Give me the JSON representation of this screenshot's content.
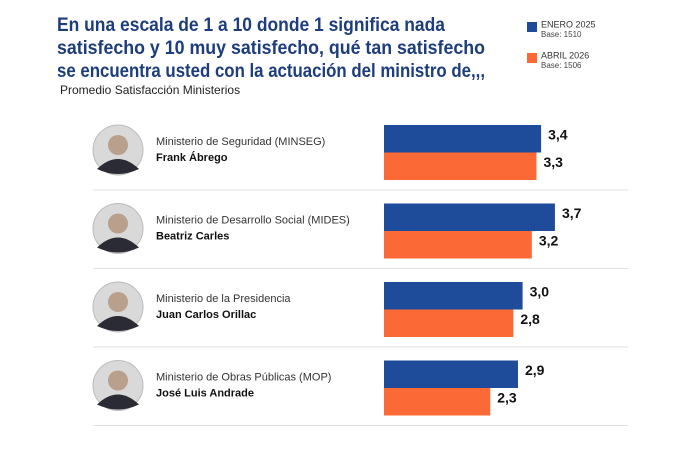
{
  "chart_data": {
    "type": "bar",
    "orientation": "horizontal",
    "title": [
      "En una escala de 1 a 10 donde 1 significa nada",
      "satisfecho y 10 muy satisfecho, qué tan satisfecho",
      "se encuentra usted con la actuación del ministro de,,,"
    ],
    "subtitle": "Promedio Satisfacción Ministerios",
    "categories": [
      "Ministerio de Seguridad (MINSEG)",
      "Ministerio de Desarrollo Social (MIDES)",
      "Ministerio de la Presidencia",
      "Ministerio de Obras Públicas (MOP)"
    ],
    "people": [
      "Frank Ábrego",
      "Beatriz Carles",
      "Juan Carlos Orillac",
      "José Luis Andrade"
    ],
    "series": [
      {
        "name": "ENERO 2025",
        "base": "Base: 1510",
        "color": "#1f4c9a",
        "values": [
          3.4,
          3.7,
          3.0,
          2.9
        ],
        "value_labels": [
          "3,4",
          "3,7",
          "3,0",
          "2,9"
        ]
      },
      {
        "name": "ABRIL 2026",
        "base": "Base: 1506",
        "color": "#fb6a36",
        "values": [
          3.3,
          3.2,
          2.8,
          2.3
        ],
        "value_labels": [
          "3,3",
          "3,2",
          "2,8",
          "2,3"
        ]
      }
    ]
  }
}
